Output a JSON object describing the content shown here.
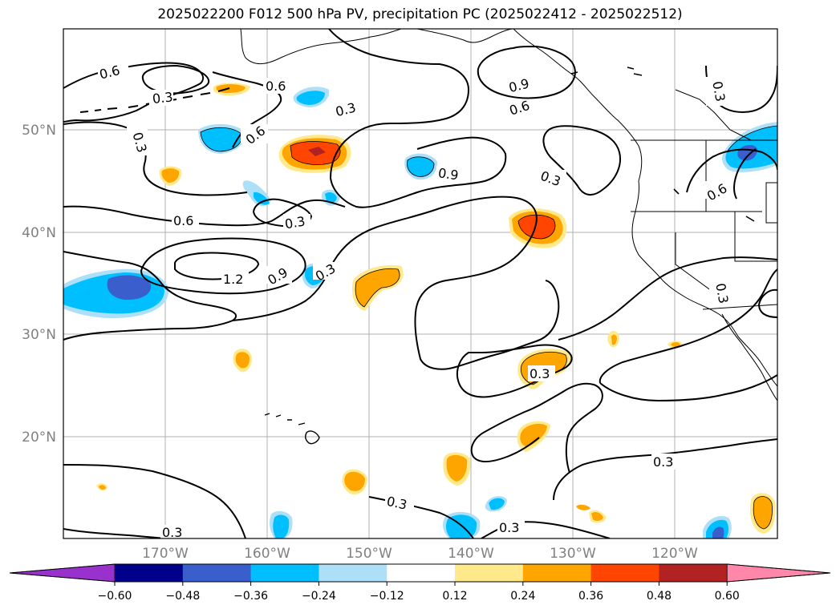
{
  "title": "2025022200 F012 500 hPa PV, precipitation PC (2025022412 - 2025022512)",
  "lat_labels": [
    "50°N",
    "40°N",
    "30°N",
    "20°N"
  ],
  "lon_labels": [
    "170°W",
    "160°W",
    "150°W",
    "140°W",
    "130°W",
    "120°W"
  ],
  "contour_labels": [
    "0.6",
    "0.3",
    "0.6",
    "0.3",
    "0.6",
    "0.9",
    "0.6",
    "0.3",
    "0.3",
    "0.9",
    "0.3",
    "0.6",
    "0.3",
    "0.6",
    "1.2",
    "0.9",
    "0.3",
    "0.3",
    "0.3",
    "0.3",
    "0.3",
    "0.3",
    "0.3"
  ],
  "colorbar": {
    "ticks": [
      "−0.60",
      "−0.48",
      "−0.36",
      "−0.24",
      "−0.12",
      "0.12",
      "0.24",
      "0.36",
      "0.48",
      "0.60"
    ],
    "colors": [
      "#9932CC",
      "#00008B",
      "#3A5FCD",
      "#00BFFF",
      "#ADE0F8",
      "#FFFFFF",
      "#FFE98A",
      "#FFA500",
      "#FF4500",
      "#B22222",
      "#FF88AA"
    ]
  }
}
